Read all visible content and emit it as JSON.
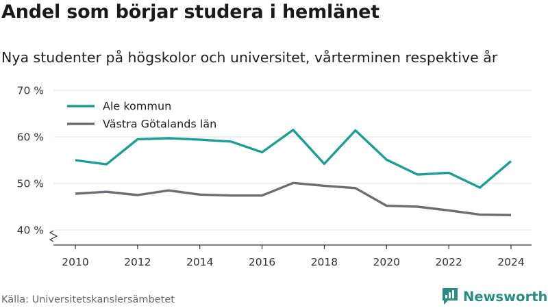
{
  "title": "Andel som börjar studera i hemlänet",
  "subtitle": "Nya studenter på högskolor och universitet, vårterminen respektive år",
  "source": "Källa: Universitetskanslersämbetet",
  "brand": "Newsworthy",
  "chart_data": {
    "type": "line",
    "x": [
      2010,
      2011,
      2012,
      2013,
      2014,
      2015,
      2016,
      2017,
      2018,
      2019,
      2020,
      2021,
      2022,
      2023,
      2024
    ],
    "series": [
      {
        "name": "Ale kommun",
        "color": "#1a9e96",
        "values": [
          55.0,
          54.1,
          59.5,
          59.7,
          59.4,
          59.0,
          56.7,
          61.5,
          54.2,
          61.4,
          55.1,
          51.9,
          52.3,
          49.1,
          54.8
        ]
      },
      {
        "name": "Västra Götalands län",
        "color": "#6e6c72",
        "values": [
          47.8,
          48.2,
          47.5,
          48.5,
          47.6,
          47.4,
          47.4,
          50.1,
          49.5,
          49.0,
          45.2,
          45.0,
          44.2,
          43.3,
          43.2
        ]
      }
    ],
    "ylim": [
      40,
      70
    ],
    "yticks": [
      40,
      50,
      60,
      70
    ],
    "ytick_labels": [
      "40 %",
      "50 %",
      "60 %",
      "70 %"
    ],
    "xticks": [
      2010,
      2012,
      2014,
      2016,
      2018,
      2020,
      2022,
      2024
    ],
    "xtick_labels": [
      "2010",
      "2012",
      "2014",
      "2016",
      "2018",
      "2020",
      "2022",
      "2024"
    ],
    "grid": true,
    "legend": "top-left",
    "axis_break": true
  }
}
